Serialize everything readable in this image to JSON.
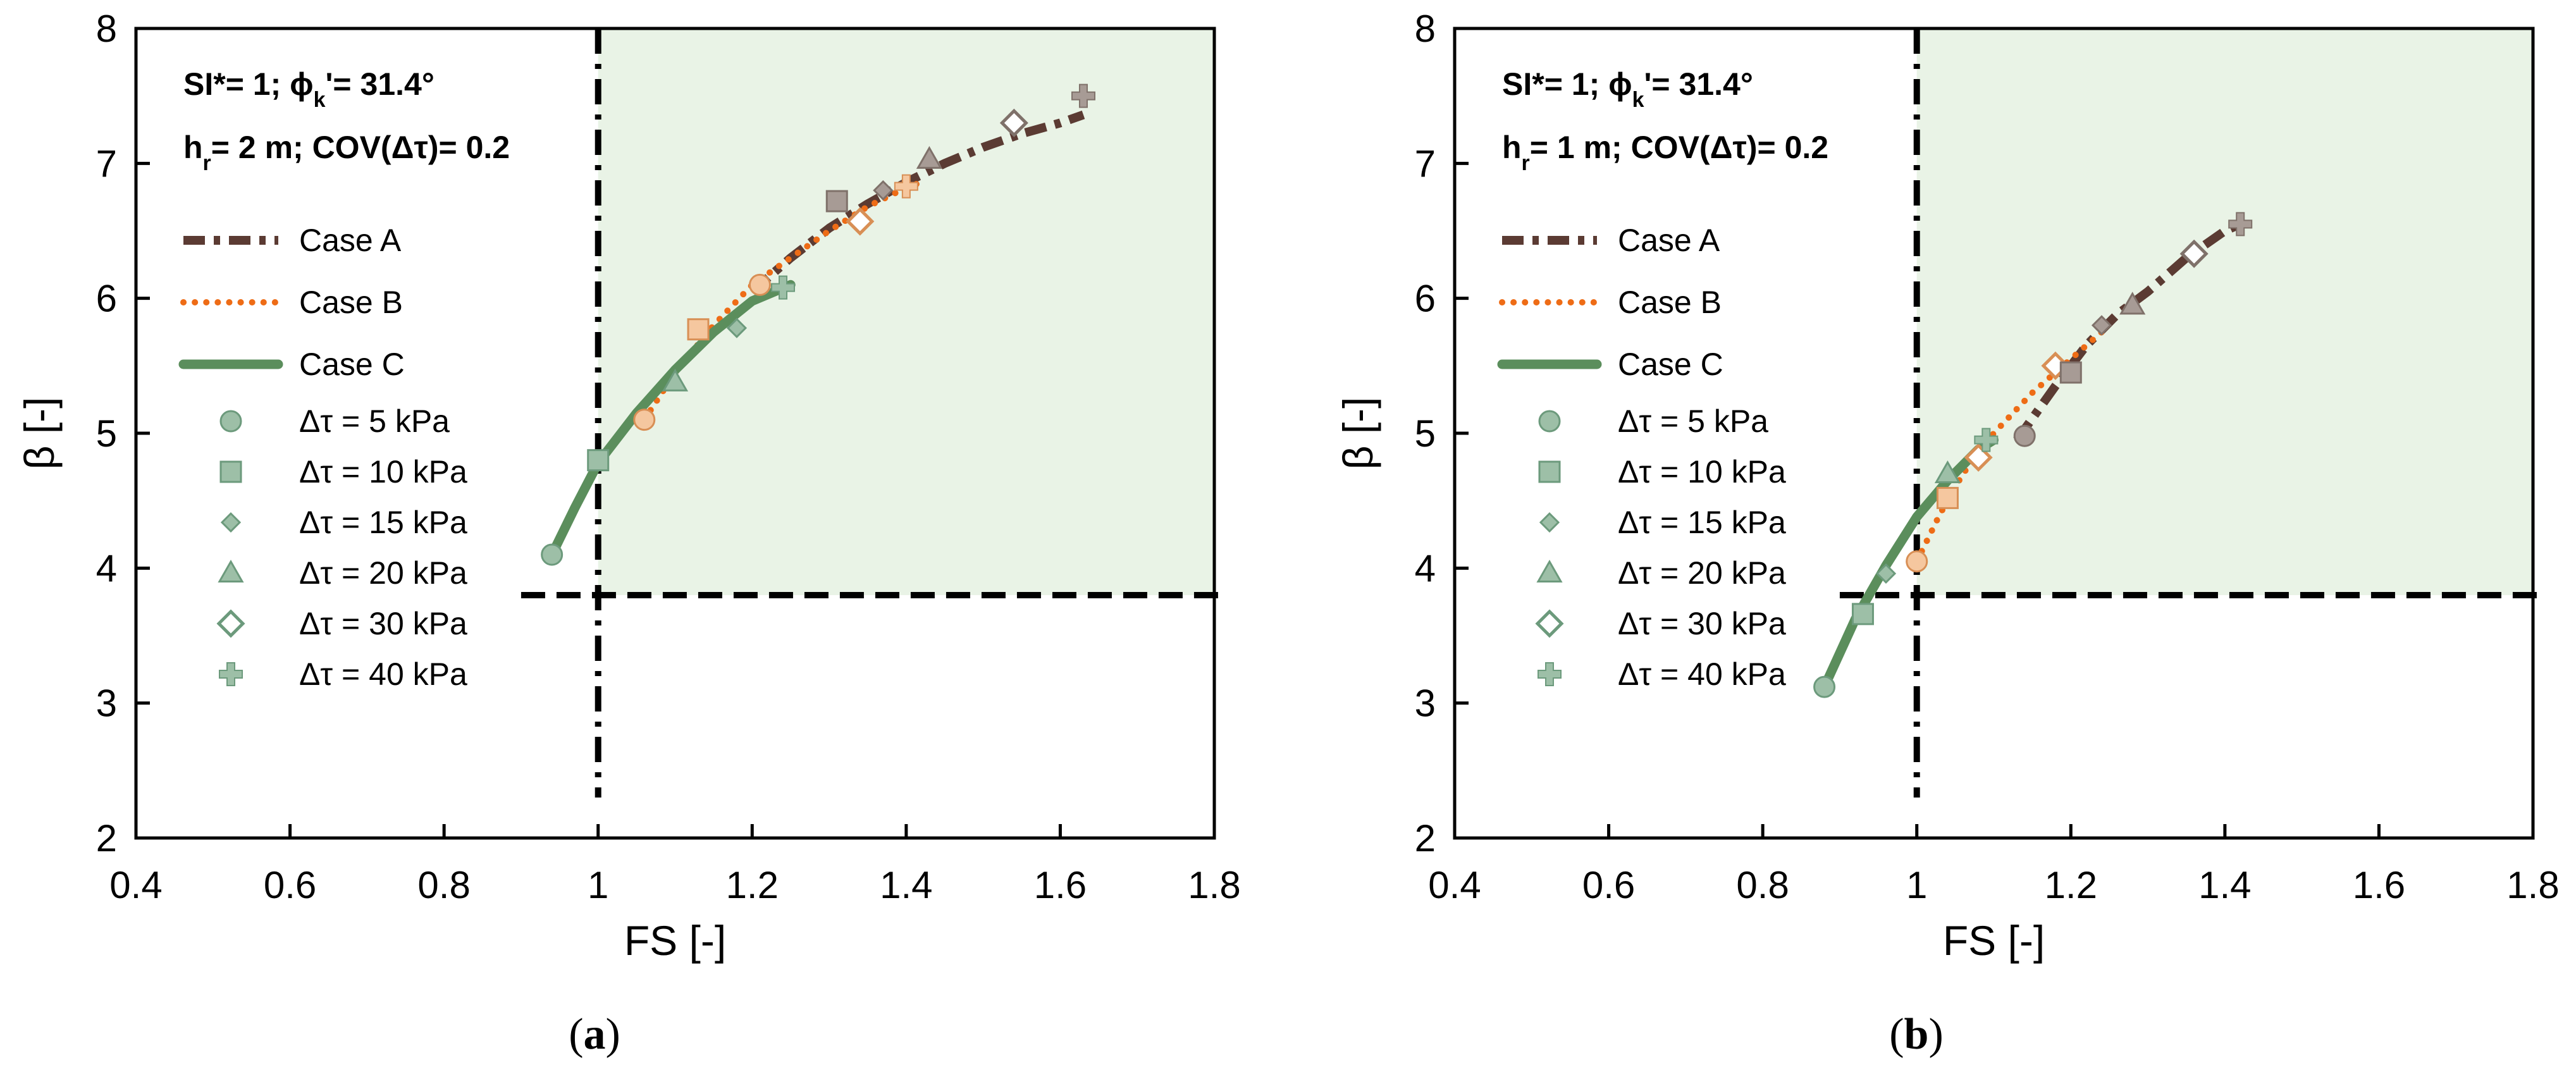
{
  "colors": {
    "caseA": "#5b3b33",
    "caseB": "#ee6c16",
    "caseC": "#5b8e5c",
    "marker_fill": "#9dbfa7",
    "marker_stroke": "#6c9a7c",
    "safe_zone": "#e9f3e6",
    "threshold": "#000000"
  },
  "legend": {
    "lines": [
      {
        "label": "Case A",
        "style": "dashdot",
        "color_key": "caseA"
      },
      {
        "label": "Case B",
        "style": "dotted",
        "color_key": "caseB"
      },
      {
        "label": "Case C",
        "style": "solid",
        "color_key": "caseC"
      }
    ],
    "markers": [
      {
        "label": "Δτ = 5 kPa",
        "shape": "circle"
      },
      {
        "label": "Δτ = 10 kPa",
        "shape": "square"
      },
      {
        "label": "Δτ = 15 kPa",
        "shape": "diamond-small"
      },
      {
        "label": "Δτ = 20 kPa",
        "shape": "triangle"
      },
      {
        "label": "Δτ = 30 kPa",
        "shape": "diamond-open"
      },
      {
        "label": "Δτ = 40 kPa",
        "shape": "plus"
      }
    ]
  },
  "chart_data": [
    {
      "type": "line",
      "caption": "(a)",
      "caption_letter": "a",
      "annotation": {
        "line1_prefix": "SI*= 1; ",
        "phi": "ϕ",
        "phi_sub": "k",
        "line1_suffix": "'= 31.4°",
        "line2_h": "h",
        "line2_h_sub": "r",
        "line2_suffix": "= 2 m; COV(Δτ)= 0.2"
      },
      "xlabel": "FS [-]",
      "ylabel": "β [-]",
      "xlim": [
        0.4,
        1.8
      ],
      "ylim": [
        2,
        8
      ],
      "xticks": [
        "0.4",
        "0.6",
        "0.8",
        "1",
        "1.2",
        "1.4",
        "1.6",
        "1.8"
      ],
      "yticks": [
        "2",
        "3",
        "4",
        "5",
        "6",
        "7",
        "8"
      ],
      "thresholds": {
        "fs": 1.0,
        "beta": 3.8
      },
      "safe_zone": {
        "x_from": 1.0,
        "y_from": 3.8
      },
      "series": [
        {
          "name": "Case A",
          "x": [
            1.2,
            1.25,
            1.3,
            1.35,
            1.4,
            1.45,
            1.5,
            1.55,
            1.6,
            1.63
          ],
          "y": [
            6.05,
            6.3,
            6.52,
            6.7,
            6.86,
            7.0,
            7.12,
            7.22,
            7.3,
            7.36
          ]
        },
        {
          "name": "Case B",
          "x": [
            1.06,
            1.1,
            1.15,
            1.2,
            1.25,
            1.3,
            1.35,
            1.4,
            1.42
          ],
          "y": [
            5.1,
            5.45,
            5.8,
            6.1,
            6.3,
            6.5,
            6.68,
            6.82,
            6.86
          ]
        },
        {
          "name": "Case C",
          "x": [
            0.94,
            0.97,
            1.0,
            1.05,
            1.1,
            1.15,
            1.2,
            1.25
          ],
          "y": [
            4.1,
            4.45,
            4.78,
            5.15,
            5.47,
            5.75,
            5.98,
            6.1
          ]
        }
      ],
      "points": [
        {
          "marker": "circle",
          "x": 0.94,
          "y": 4.1,
          "color_key": "marker_fill"
        },
        {
          "marker": "square",
          "x": 1.0,
          "y": 4.8,
          "color_key": "marker_fill"
        },
        {
          "marker": "circle",
          "x": 1.06,
          "y": 5.1,
          "color_key": "caseB_light"
        },
        {
          "marker": "triangle",
          "x": 1.1,
          "y": 5.38,
          "color_key": "marker_fill"
        },
        {
          "marker": "square",
          "x": 1.13,
          "y": 5.77,
          "color_key": "caseB_light"
        },
        {
          "marker": "diamond-small",
          "x": 1.18,
          "y": 5.78,
          "color_key": "marker_fill"
        },
        {
          "marker": "circle",
          "x": 1.21,
          "y": 6.1,
          "color_key": "caseB_light"
        },
        {
          "marker": "plus",
          "x": 1.24,
          "y": 6.08,
          "color_key": "marker_fill"
        },
        {
          "marker": "square",
          "x": 1.31,
          "y": 6.72,
          "color_key": "caseA_light"
        },
        {
          "marker": "diamond-open",
          "x": 1.34,
          "y": 6.57,
          "color_key": "caseB_light"
        },
        {
          "marker": "diamond-small",
          "x": 1.37,
          "y": 6.8,
          "color_key": "caseA_light"
        },
        {
          "marker": "plus",
          "x": 1.4,
          "y": 6.83,
          "color_key": "caseB_light"
        },
        {
          "marker": "triangle",
          "x": 1.43,
          "y": 7.03,
          "color_key": "caseA_light"
        },
        {
          "marker": "diamond-open",
          "x": 1.54,
          "y": 7.3,
          "color_key": "caseA_light"
        },
        {
          "marker": "plus",
          "x": 1.63,
          "y": 7.5,
          "color_key": "caseA_light"
        }
      ]
    },
    {
      "type": "line",
      "caption": "(b)",
      "caption_letter": "b",
      "annotation": {
        "line1_prefix": "SI*= 1; ",
        "phi": "ϕ",
        "phi_sub": "k",
        "line1_suffix": "'= 31.4°",
        "line2_h": "h",
        "line2_h_sub": "r",
        "line2_suffix": "= 1 m; COV(Δτ)= 0.2"
      },
      "xlabel": "FS [-]",
      "ylabel": "β [-]",
      "xlim": [
        0.4,
        1.8
      ],
      "ylim": [
        2,
        8
      ],
      "xticks": [
        "0.4",
        "0.6",
        "0.8",
        "1",
        "1.2",
        "1.4",
        "1.6",
        "1.8"
      ],
      "yticks": [
        "2",
        "3",
        "4",
        "5",
        "6",
        "7",
        "8"
      ],
      "thresholds": {
        "fs": 1.0,
        "beta": 3.8
      },
      "safe_zone": {
        "x_from": 1.0,
        "y_from": 3.8
      },
      "series": [
        {
          "name": "Case A",
          "x": [
            1.13,
            1.18,
            1.22,
            1.26,
            1.3,
            1.35,
            1.4,
            1.42
          ],
          "y": [
            4.95,
            5.35,
            5.65,
            5.88,
            6.05,
            6.3,
            6.5,
            6.55
          ]
        },
        {
          "name": "Case B",
          "x": [
            1.0,
            1.03,
            1.06,
            1.1,
            1.15,
            1.2,
            1.24
          ],
          "y": [
            4.05,
            4.4,
            4.7,
            5.0,
            5.3,
            5.55,
            5.75
          ]
        },
        {
          "name": "Case C",
          "x": [
            0.88,
            0.92,
            0.96,
            1.0,
            1.04,
            1.08,
            1.1
          ],
          "y": [
            3.12,
            3.62,
            4.02,
            4.38,
            4.65,
            4.88,
            4.95
          ]
        }
      ],
      "points": [
        {
          "marker": "circle",
          "x": 0.88,
          "y": 3.12,
          "color_key": "marker_fill"
        },
        {
          "marker": "square",
          "x": 0.93,
          "y": 3.66,
          "color_key": "marker_fill"
        },
        {
          "marker": "diamond-small",
          "x": 0.96,
          "y": 3.96,
          "color_key": "marker_fill"
        },
        {
          "marker": "circle",
          "x": 1.0,
          "y": 4.05,
          "color_key": "caseB_light"
        },
        {
          "marker": "square",
          "x": 1.04,
          "y": 4.52,
          "color_key": "caseB_light"
        },
        {
          "marker": "triangle",
          "x": 1.04,
          "y": 4.7,
          "color_key": "marker_fill"
        },
        {
          "marker": "diamond-open",
          "x": 1.08,
          "y": 4.82,
          "color_key": "caseB_light"
        },
        {
          "marker": "plus",
          "x": 1.09,
          "y": 4.95,
          "color_key": "marker_fill"
        },
        {
          "marker": "circle",
          "x": 1.14,
          "y": 4.98,
          "color_key": "caseA_light"
        },
        {
          "marker": "diamond-open",
          "x": 1.18,
          "y": 5.5,
          "color_key": "caseB_light"
        },
        {
          "marker": "square",
          "x": 1.2,
          "y": 5.45,
          "color_key": "caseA_light"
        },
        {
          "marker": "diamond-small",
          "x": 1.24,
          "y": 5.8,
          "color_key": "caseA_light"
        },
        {
          "marker": "triangle",
          "x": 1.28,
          "y": 5.95,
          "color_key": "caseA_light"
        },
        {
          "marker": "diamond-open",
          "x": 1.36,
          "y": 6.33,
          "color_key": "caseA_light"
        },
        {
          "marker": "plus",
          "x": 1.42,
          "y": 6.55,
          "color_key": "caseA_light"
        }
      ]
    }
  ]
}
